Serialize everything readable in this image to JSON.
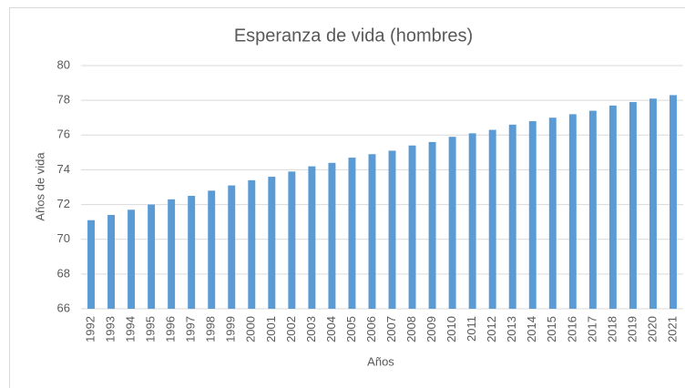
{
  "chart_data": {
    "type": "bar",
    "title": "Esperanza de vida (hombres)",
    "x_label": "Años",
    "y_label": "Años de vida",
    "categories": [
      "1992",
      "1993",
      "1994",
      "1995",
      "1996",
      "1997",
      "1998",
      "1999",
      "2000",
      "2001",
      "2002",
      "2003",
      "2004",
      "2005",
      "2006",
      "2007",
      "2008",
      "2009",
      "2010",
      "2011",
      "2012",
      "2013",
      "2014",
      "2015",
      "2016",
      "2017",
      "2018",
      "2019",
      "2020",
      "2021"
    ],
    "values": [
      71.1,
      71.4,
      71.7,
      72.0,
      72.3,
      72.5,
      72.8,
      73.1,
      73.4,
      73.6,
      73.9,
      74.2,
      74.4,
      74.7,
      74.9,
      75.1,
      75.4,
      75.6,
      75.9,
      76.1,
      76.3,
      76.6,
      76.8,
      77.0,
      77.2,
      77.4,
      77.7,
      77.9,
      78.1,
      78.3
    ],
    "color": "#5b9bd5",
    "ylim": [
      66,
      80
    ],
    "yticks": [
      66,
      68,
      70,
      72,
      74,
      76,
      78,
      80
    ],
    "grid": true
  }
}
